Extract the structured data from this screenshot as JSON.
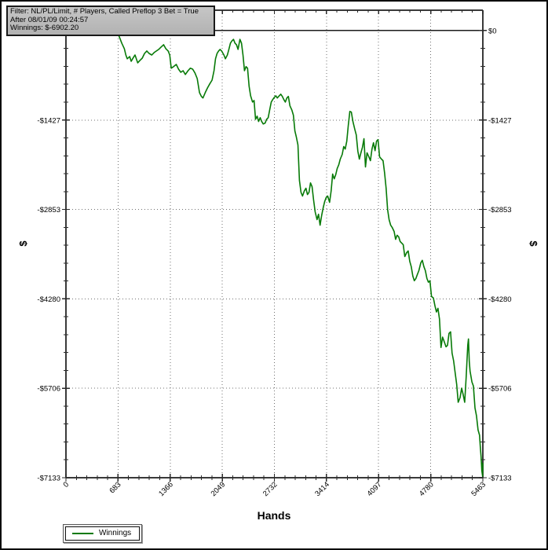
{
  "window": {
    "background": "#ffffff",
    "border_color": "#0a0a0a"
  },
  "info_box": {
    "lines": [
      "Filter: NL/PL/Limit, # Players, Called Preflop 3 Bet = True",
      "After 08/01/09 00:24:57",
      "Winnings: $-6902.20"
    ],
    "background": "#bdbdbd",
    "border_color": "#191919"
  },
  "chart_data": {
    "type": "line",
    "title": "",
    "xlabel": "Hands",
    "ylabel_left": "$",
    "ylabel_right": "$",
    "xlim": [
      0,
      5463
    ],
    "ylim": [
      -7133,
      325
    ],
    "x_ticks": [
      0,
      683,
      1366,
      2049,
      2732,
      3414,
      4097,
      4780,
      5463
    ],
    "y_ticks": [
      0,
      -1427,
      -2853,
      -4280,
      -5706,
      -7133
    ],
    "y_tick_labels": [
      "$0",
      "-$1427",
      "-$2853",
      "-$4280",
      "-$5706",
      "-$7133"
    ],
    "x_minor_divisions": 5,
    "y_minor_divisions": 5,
    "grid": "dotted gridlines at major ticks; solid reference line at $0; mirrored y axes",
    "legend": {
      "position": "bottom-left",
      "entries": [
        "Winnings"
      ]
    },
    "series": [
      {
        "name": "Winnings",
        "color": "#077a07",
        "final_value": -6902.2,
        "points": [
          [
            0,
            0
          ],
          [
            165,
            -10
          ],
          [
            340,
            -50
          ],
          [
            390,
            -10
          ],
          [
            475,
            -25
          ],
          [
            575,
            -10
          ],
          [
            660,
            -10
          ],
          [
            700,
            -100
          ],
          [
            732,
            -200
          ],
          [
            765,
            -290
          ],
          [
            785,
            -390
          ],
          [
            804,
            -450
          ],
          [
            835,
            -415
          ],
          [
            855,
            -490
          ],
          [
            886,
            -425
          ],
          [
            905,
            -390
          ],
          [
            940,
            -515
          ],
          [
            970,
            -475
          ],
          [
            1000,
            -440
          ],
          [
            1030,
            -365
          ],
          [
            1060,
            -325
          ],
          [
            1090,
            -365
          ],
          [
            1125,
            -390
          ],
          [
            1155,
            -350
          ],
          [
            1185,
            -325
          ],
          [
            1215,
            -300
          ],
          [
            1245,
            -265
          ],
          [
            1280,
            -225
          ],
          [
            1310,
            -290
          ],
          [
            1340,
            -325
          ],
          [
            1360,
            -390
          ],
          [
            1380,
            -600
          ],
          [
            1410,
            -575
          ],
          [
            1445,
            -540
          ],
          [
            1475,
            -615
          ],
          [
            1505,
            -665
          ],
          [
            1535,
            -640
          ],
          [
            1565,
            -700
          ],
          [
            1600,
            -640
          ],
          [
            1630,
            -600
          ],
          [
            1660,
            -615
          ],
          [
            1690,
            -675
          ],
          [
            1720,
            -765
          ],
          [
            1750,
            -990
          ],
          [
            1775,
            -1050
          ],
          [
            1795,
            -1075
          ],
          [
            1825,
            -990
          ],
          [
            1855,
            -915
          ],
          [
            1885,
            -850
          ],
          [
            1915,
            -790
          ],
          [
            1940,
            -640
          ],
          [
            1960,
            -450
          ],
          [
            1980,
            -365
          ],
          [
            2000,
            -325
          ],
          [
            2020,
            -300
          ],
          [
            2040,
            -325
          ],
          [
            2070,
            -390
          ],
          [
            2090,
            -450
          ],
          [
            2115,
            -390
          ],
          [
            2135,
            -300
          ],
          [
            2155,
            -200
          ],
          [
            2175,
            -165
          ],
          [
            2195,
            -140
          ],
          [
            2215,
            -200
          ],
          [
            2235,
            -225
          ],
          [
            2255,
            -300
          ],
          [
            2280,
            -140
          ],
          [
            2300,
            -200
          ],
          [
            2320,
            -390
          ],
          [
            2340,
            -640
          ],
          [
            2360,
            -575
          ],
          [
            2380,
            -600
          ],
          [
            2400,
            -890
          ],
          [
            2420,
            -1040
          ],
          [
            2445,
            -1140
          ],
          [
            2465,
            -1115
          ],
          [
            2485,
            -1415
          ],
          [
            2505,
            -1365
          ],
          [
            2525,
            -1450
          ],
          [
            2545,
            -1390
          ],
          [
            2565,
            -1450
          ],
          [
            2585,
            -1490
          ],
          [
            2610,
            -1475
          ],
          [
            2630,
            -1415
          ],
          [
            2650,
            -1390
          ],
          [
            2670,
            -1265
          ],
          [
            2690,
            -1140
          ],
          [
            2710,
            -1100
          ],
          [
            2730,
            -1065
          ],
          [
            2750,
            -1040
          ],
          [
            2770,
            -1075
          ],
          [
            2795,
            -1040
          ],
          [
            2815,
            -1015
          ],
          [
            2835,
            -1050
          ],
          [
            2855,
            -1100
          ],
          [
            2875,
            -1140
          ],
          [
            2895,
            -1075
          ],
          [
            2915,
            -1050
          ],
          [
            2935,
            -1200
          ],
          [
            2960,
            -1265
          ],
          [
            2980,
            -1350
          ],
          [
            3000,
            -1600
          ],
          [
            3020,
            -1700
          ],
          [
            3040,
            -1825
          ],
          [
            3060,
            -2390
          ],
          [
            3080,
            -2580
          ],
          [
            3100,
            -2640
          ],
          [
            3125,
            -2555
          ],
          [
            3145,
            -2515
          ],
          [
            3165,
            -2615
          ],
          [
            3185,
            -2580
          ],
          [
            3205,
            -2430
          ],
          [
            3225,
            -2490
          ],
          [
            3245,
            -2700
          ],
          [
            3265,
            -2890
          ],
          [
            3290,
            -3015
          ],
          [
            3310,
            -2930
          ],
          [
            3330,
            -3105
          ],
          [
            3350,
            -2955
          ],
          [
            3370,
            -2830
          ],
          [
            3390,
            -2730
          ],
          [
            3410,
            -2665
          ],
          [
            3430,
            -2640
          ],
          [
            3455,
            -2740
          ],
          [
            3475,
            -2555
          ],
          [
            3495,
            -2290
          ],
          [
            3515,
            -2365
          ],
          [
            3535,
            -2300
          ],
          [
            3555,
            -2200
          ],
          [
            3575,
            -2140
          ],
          [
            3595,
            -2050
          ],
          [
            3620,
            -1975
          ],
          [
            3640,
            -1850
          ],
          [
            3660,
            -1890
          ],
          [
            3680,
            -1765
          ],
          [
            3700,
            -1515
          ],
          [
            3720,
            -1290
          ],
          [
            3740,
            -1300
          ],
          [
            3760,
            -1450
          ],
          [
            3785,
            -1575
          ],
          [
            3805,
            -1665
          ],
          [
            3825,
            -1925
          ],
          [
            3845,
            -2050
          ],
          [
            3865,
            -1950
          ],
          [
            3885,
            -1865
          ],
          [
            3905,
            -1725
          ],
          [
            3925,
            -2175
          ],
          [
            3945,
            -1950
          ],
          [
            3970,
            -2015
          ],
          [
            3990,
            -2075
          ],
          [
            4010,
            -1890
          ],
          [
            4030,
            -1790
          ],
          [
            4050,
            -1915
          ],
          [
            4070,
            -1765
          ],
          [
            4090,
            -1740
          ],
          [
            4110,
            -2015
          ],
          [
            4135,
            -2050
          ],
          [
            4155,
            -2075
          ],
          [
            4175,
            -2265
          ],
          [
            4195,
            -2515
          ],
          [
            4215,
            -2855
          ],
          [
            4235,
            -3015
          ],
          [
            4255,
            -3105
          ],
          [
            4275,
            -3140
          ],
          [
            4300,
            -3205
          ],
          [
            4320,
            -3330
          ],
          [
            4340,
            -3265
          ],
          [
            4360,
            -3290
          ],
          [
            4380,
            -3365
          ],
          [
            4400,
            -3390
          ],
          [
            4420,
            -3415
          ],
          [
            4440,
            -3605
          ],
          [
            4465,
            -3540
          ],
          [
            4485,
            -3515
          ],
          [
            4505,
            -3680
          ],
          [
            4525,
            -3765
          ],
          [
            4545,
            -3915
          ],
          [
            4565,
            -3990
          ],
          [
            4585,
            -3955
          ],
          [
            4605,
            -3890
          ],
          [
            4625,
            -3830
          ],
          [
            4650,
            -3705
          ],
          [
            4670,
            -3665
          ],
          [
            4690,
            -3765
          ],
          [
            4710,
            -3830
          ],
          [
            4730,
            -3955
          ],
          [
            4750,
            -4015
          ],
          [
            4770,
            -3990
          ],
          [
            4790,
            -4240
          ],
          [
            4815,
            -4265
          ],
          [
            4835,
            -4390
          ],
          [
            4855,
            -4490
          ],
          [
            4875,
            -4430
          ],
          [
            4895,
            -4605
          ],
          [
            4915,
            -5055
          ],
          [
            4935,
            -4890
          ],
          [
            4955,
            -4955
          ],
          [
            4980,
            -5045
          ],
          [
            5000,
            -5020
          ],
          [
            5020,
            -4830
          ],
          [
            5040,
            -4805
          ],
          [
            5060,
            -5145
          ],
          [
            5080,
            -5270
          ],
          [
            5100,
            -5455
          ],
          [
            5120,
            -5645
          ],
          [
            5140,
            -5930
          ],
          [
            5165,
            -5855
          ],
          [
            5185,
            -5705
          ],
          [
            5205,
            -5805
          ],
          [
            5225,
            -5930
          ],
          [
            5245,
            -5520
          ],
          [
            5265,
            -5020
          ],
          [
            5275,
            -4920
          ],
          [
            5285,
            -5270
          ],
          [
            5295,
            -5430
          ],
          [
            5320,
            -5605
          ],
          [
            5340,
            -5670
          ],
          [
            5360,
            -6020
          ],
          [
            5380,
            -6145
          ],
          [
            5400,
            -6370
          ],
          [
            5420,
            -6455
          ],
          [
            5430,
            -6645
          ],
          [
            5440,
            -6805
          ],
          [
            5450,
            -7020
          ],
          [
            5460,
            -7110
          ],
          [
            5463,
            -6902
          ]
        ]
      }
    ]
  }
}
